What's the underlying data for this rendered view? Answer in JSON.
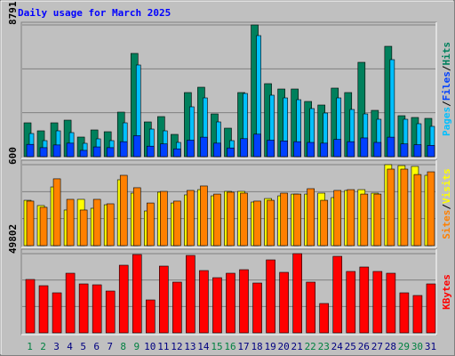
{
  "chart_data": [
    {
      "type": "bar",
      "title": "Daily usage for March 2025",
      "ylim": [
        0,
        8791
      ],
      "yticks": [
        8791
      ],
      "legend_separator": "/",
      "series": [
        {
          "name": "Hits",
          "color": "#00805c",
          "values": [
            2257,
            1723,
            2257,
            2435,
            1307,
            1782,
            1663,
            2970,
            6890,
            2317,
            2673,
            1485,
            4277,
            4633,
            2851,
            1901,
            4277,
            8791,
            4871,
            4514,
            4514,
            3683,
            3445,
            4574,
            4277,
            6296,
            3089,
            7365,
            2732,
            2614,
            2554
          ]
        },
        {
          "name": "Files",
          "color": "#0040ff",
          "values": [
            820,
            600,
            780,
            900,
            420,
            650,
            600,
            1000,
            1400,
            700,
            850,
            520,
            1100,
            1300,
            900,
            580,
            1200,
            1500,
            1100,
            1050,
            1000,
            950,
            900,
            1150,
            1000,
            1250,
            950,
            1300,
            850,
            800,
            750
          ]
        },
        {
          "name": "Pages",
          "color": "#00c0ff",
          "values": [
            1544,
            1069,
            1723,
            1604,
            891,
            1188,
            1069,
            2257,
            6118,
            1841,
            1723,
            950,
            3326,
            3920,
            2317,
            1069,
            4217,
            8078,
            4099,
            3920,
            3801,
            3208,
            2911,
            3920,
            3148,
            2851,
            2495,
            6474,
            2495,
            2198,
            2020
          ]
        }
      ]
    },
    {
      "type": "bar",
      "ylim": [
        0,
        600
      ],
      "yticks": [
        600
      ],
      "legend_separator": "/",
      "series": [
        {
          "name": "Visits",
          "color": "#ffff00",
          "values": [
            336,
            297,
            435,
            264,
            343,
            277,
            303,
            488,
            389,
            257,
            396,
            316,
            376,
            415,
            369,
            402,
            402,
            323,
            349,
            369,
            382,
            382,
            389,
            356,
            409,
            415,
            389,
            600,
            593,
            587,
            521
          ]
        },
        {
          "name": "Sites",
          "color": "#ff8000",
          "values": [
            330,
            284,
            495,
            343,
            264,
            343,
            310,
            521,
            429,
            316,
            402,
            330,
            409,
            442,
            382,
            396,
            389,
            330,
            336,
            389,
            382,
            422,
            336,
            409,
            415,
            382,
            382,
            567,
            567,
            527,
            547
          ]
        }
      ]
    },
    {
      "type": "bar",
      "ylim": [
        0,
        49802
      ],
      "yticks": [
        49802
      ],
      "series": [
        {
          "name": "KBytes",
          "color": "#ff0000",
          "values": [
            33574,
            29657,
            25181,
            37491,
            30776,
            30217,
            26300,
            42527,
            49242,
            20704,
            41968,
            31895,
            48683,
            39170,
            34693,
            37491,
            39729,
            31336,
            45885,
            38051,
            49802,
            31895,
            18466,
            48123,
            38610,
            41408,
            38610,
            37491,
            25181,
            23502,
            30776
          ]
        }
      ],
      "categories": [
        "1",
        "2",
        "3",
        "4",
        "5",
        "6",
        "7",
        "8",
        "9",
        "10",
        "11",
        "12",
        "13",
        "14",
        "15",
        "16",
        "17",
        "18",
        "19",
        "20",
        "21",
        "22",
        "23",
        "24",
        "25",
        "26",
        "27",
        "28",
        "29",
        "30",
        "31"
      ],
      "category_colors": [
        "#008040",
        "#008040",
        "#000080",
        "#000080",
        "#000080",
        "#000080",
        "#000080",
        "#008040",
        "#008040",
        "#000080",
        "#000080",
        "#000080",
        "#000080",
        "#000080",
        "#008040",
        "#008040",
        "#000080",
        "#000080",
        "#000080",
        "#000080",
        "#000080",
        "#008040",
        "#008040",
        "#000080",
        "#000080",
        "#000080",
        "#000080",
        "#000080",
        "#008040",
        "#008040",
        "#000080"
      ]
    }
  ]
}
